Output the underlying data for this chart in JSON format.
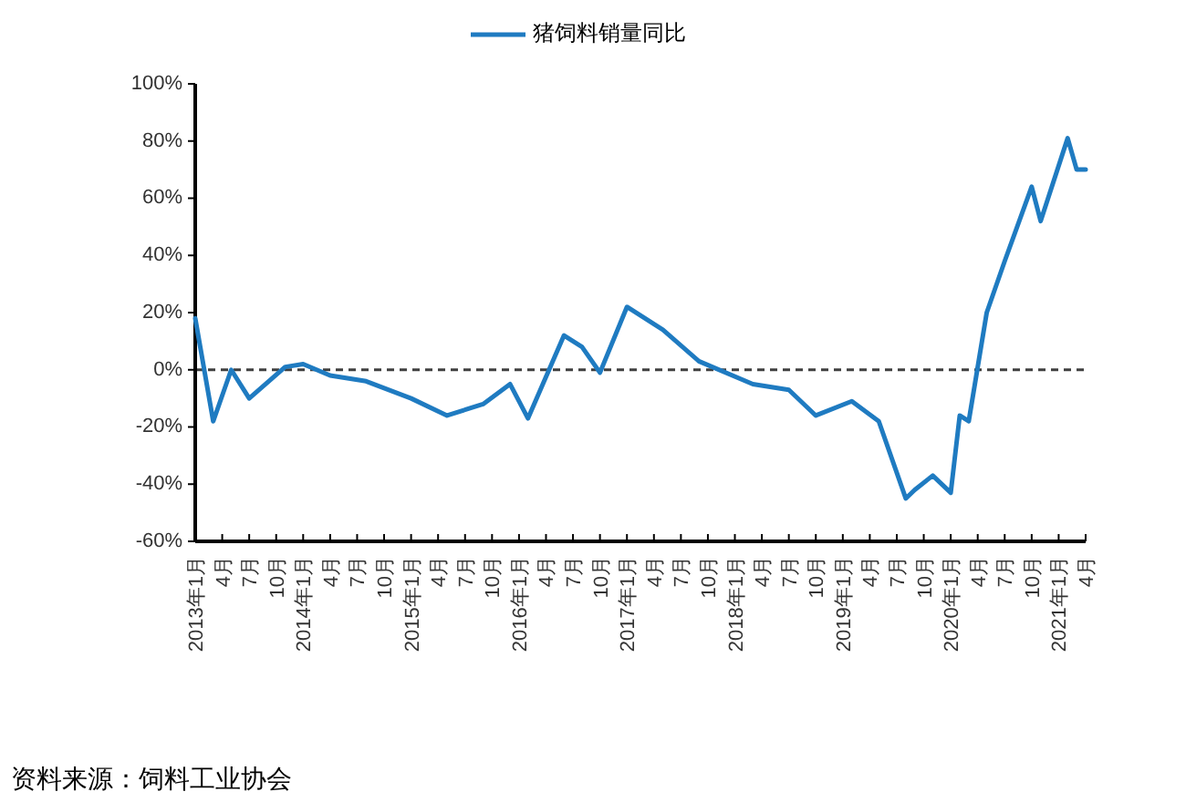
{
  "chart_data": {
    "type": "line",
    "annotations": [
      "资料来源：饲料工业协会"
    ],
    "x": [
      "2013-01",
      "2013-03",
      "2013-05",
      "2013-07",
      "2013-11",
      "2014-01",
      "2014-04",
      "2014-08",
      "2015-01",
      "2015-05",
      "2015-09",
      "2015-12",
      "2016-02",
      "2016-06",
      "2016-08",
      "2016-10",
      "2017-01",
      "2017-05",
      "2017-09",
      "2018-03",
      "2018-07",
      "2018-10",
      "2019-02",
      "2019-05",
      "2019-08",
      "2019-09",
      "2019-11",
      "2020-01",
      "2020-02",
      "2020-03",
      "2020-05",
      "2020-07",
      "2020-10",
      "2020-11",
      "2021-02",
      "2021-03",
      "2021-04"
    ],
    "series": [
      {
        "name": "猪饲料销量同比",
        "color": "#1f7bc1",
        "values": [
          18,
          -18,
          0,
          -10,
          1,
          2,
          -2,
          -4,
          -10,
          -16,
          -12,
          -5,
          -17,
          12,
          8,
          -1,
          22,
          14,
          3,
          -5,
          -7,
          -16,
          -11,
          -18,
          -45,
          -42,
          -37,
          -43,
          -16,
          -18,
          20,
          38,
          64,
          52,
          81,
          70,
          70
        ]
      }
    ],
    "xlim": [
      "2013-01",
      "2021-04"
    ],
    "xticks": [
      {
        "value": "2013-01",
        "label": "2013年1月"
      },
      {
        "value": "2013-04",
        "label": "4月"
      },
      {
        "value": "2013-07",
        "label": "7月"
      },
      {
        "value": "2013-10",
        "label": "10月"
      },
      {
        "value": "2014-01",
        "label": "2014年1月"
      },
      {
        "value": "2014-04",
        "label": "4月"
      },
      {
        "value": "2014-07",
        "label": "7月"
      },
      {
        "value": "2014-10",
        "label": "10月"
      },
      {
        "value": "2015-01",
        "label": "2015年1月"
      },
      {
        "value": "2015-04",
        "label": "4月"
      },
      {
        "value": "2015-07",
        "label": "7月"
      },
      {
        "value": "2015-10",
        "label": "10月"
      },
      {
        "value": "2016-01",
        "label": "2016年1月"
      },
      {
        "value": "2016-04",
        "label": "4月"
      },
      {
        "value": "2016-07",
        "label": "7月"
      },
      {
        "value": "2016-10",
        "label": "10月"
      },
      {
        "value": "2017-01",
        "label": "2017年1月"
      },
      {
        "value": "2017-04",
        "label": "4月"
      },
      {
        "value": "2017-07",
        "label": "7月"
      },
      {
        "value": "2017-10",
        "label": "10月"
      },
      {
        "value": "2018-01",
        "label": "2018年1月"
      },
      {
        "value": "2018-04",
        "label": "4月"
      },
      {
        "value": "2018-07",
        "label": "7月"
      },
      {
        "value": "2018-10",
        "label": "10月"
      },
      {
        "value": "2019-01",
        "label": "2019年1月"
      },
      {
        "value": "2019-04",
        "label": "4月"
      },
      {
        "value": "2019-07",
        "label": "7月"
      },
      {
        "value": "2019-10",
        "label": "10月"
      },
      {
        "value": "2020-01",
        "label": "2020年1月"
      },
      {
        "value": "2020-04",
        "label": "4月"
      },
      {
        "value": "2020-07",
        "label": "7月"
      },
      {
        "value": "2020-10",
        "label": "10月"
      },
      {
        "value": "2021-01",
        "label": "2021年1月"
      },
      {
        "value": "2021-04",
        "label": "4月"
      }
    ],
    "ylim": [
      -60,
      100
    ],
    "yticks": [
      {
        "value": -60,
        "label": "-60%"
      },
      {
        "value": -40,
        "label": "-40%"
      },
      {
        "value": -20,
        "label": "-20%"
      },
      {
        "value": 0,
        "label": "0%"
      },
      {
        "value": 20,
        "label": "20%"
      },
      {
        "value": 40,
        "label": "40%"
      },
      {
        "value": 60,
        "label": "60%"
      },
      {
        "value": 80,
        "label": "80%"
      },
      {
        "value": 100,
        "label": "100%"
      }
    ],
    "ref_lines": [
      {
        "axis": "y",
        "value": 0,
        "color": "#404040",
        "line_style": "dashed"
      }
    ],
    "legend": "top"
  }
}
